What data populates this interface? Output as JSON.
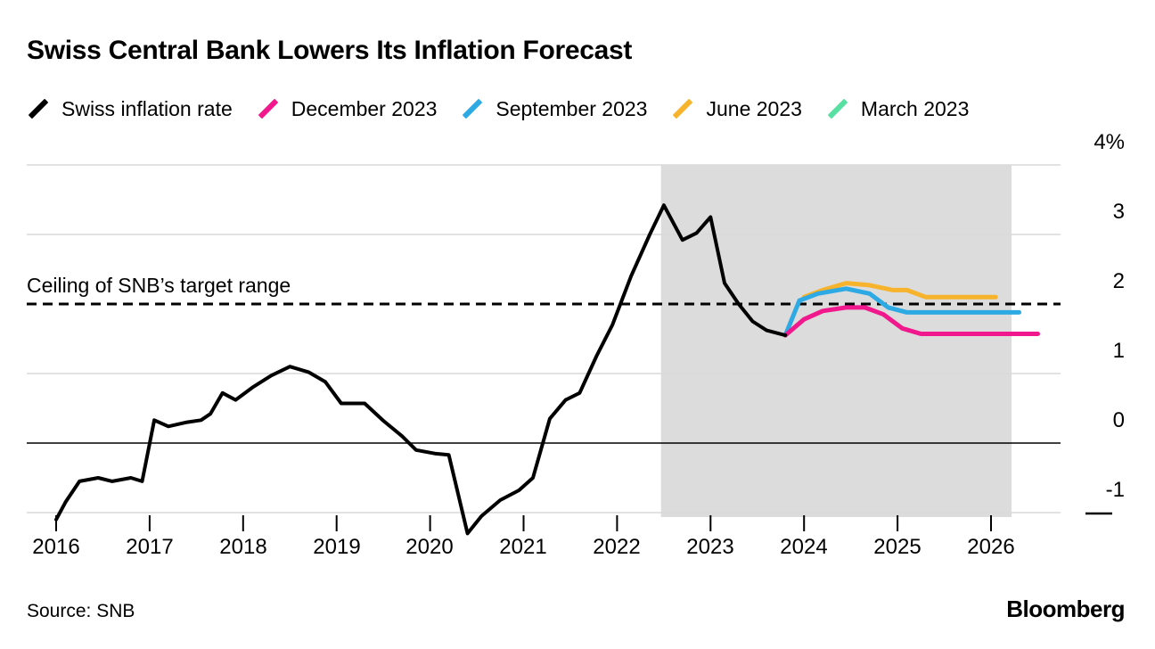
{
  "title": "Swiss Central Bank Lowers Its Inflation Forecast",
  "legend": {
    "items": [
      {
        "label": "Swiss inflation rate",
        "color": "#000000"
      },
      {
        "label": "December 2023",
        "color": "#f0188c"
      },
      {
        "label": "September 2023",
        "color": "#2da9e4"
      },
      {
        "label": "June 2023",
        "color": "#f6b32b"
      },
      {
        "label": "March 2023",
        "color": "#58dfa2"
      }
    ]
  },
  "annotation_label": "Ceiling of SNB’s target range",
  "source": "Source: SNB",
  "logo": "Bloomberg",
  "chart_data": {
    "type": "line",
    "title": "Swiss Central Bank Lowers Its Inflation Forecast",
    "xlabel": "",
    "ylabel": "",
    "ylim": [
      -1.5,
      4
    ],
    "xlim": [
      2015.7,
      2026.75
    ],
    "grid": true,
    "legend_position": "top",
    "y_ticks": [
      {
        "label": "4%",
        "value": 4
      },
      {
        "label": "3",
        "value": 3
      },
      {
        "label": "2",
        "value": 2
      },
      {
        "label": "1",
        "value": 1
      },
      {
        "label": "0",
        "value": 0
      },
      {
        "label": "-1",
        "value": -1
      }
    ],
    "x_ticks": [
      {
        "label": "2016",
        "value": 2016
      },
      {
        "label": "2017",
        "value": 2017
      },
      {
        "label": "2018",
        "value": 2018
      },
      {
        "label": "2019",
        "value": 2019
      },
      {
        "label": "2020",
        "value": 2020
      },
      {
        "label": "2021",
        "value": 2021
      },
      {
        "label": "2022",
        "value": 2022
      },
      {
        "label": "2023",
        "value": 2023
      },
      {
        "label": "2024",
        "value": 2024
      },
      {
        "label": "2025",
        "value": 2025
      },
      {
        "label": "2026",
        "value": 2026
      }
    ],
    "target_ceiling": {
      "label": "Ceiling of SNB’s target range",
      "value": 2.0,
      "style": "dashed",
      "color": "#000000"
    },
    "forecast_region": {
      "x_start": 2022.47,
      "x_end": 2026.22,
      "color": "#dcdcdc"
    },
    "series": [
      {
        "name": "Swiss inflation rate",
        "color": "#000000",
        "x": [
          2016.0,
          2016.1,
          2016.25,
          2016.45,
          2016.6,
          2016.8,
          2016.92,
          2017.05,
          2017.2,
          2017.4,
          2017.55,
          2017.65,
          2017.78,
          2017.92,
          2018.1,
          2018.3,
          2018.5,
          2018.7,
          2018.88,
          2019.05,
          2019.3,
          2019.5,
          2019.7,
          2019.85,
          2020.05,
          2020.2,
          2020.4,
          2020.55,
          2020.75,
          2020.95,
          2021.1,
          2021.28,
          2021.45,
          2021.6,
          2021.78,
          2021.95,
          2022.15,
          2022.35,
          2022.5,
          2022.7,
          2022.85,
          2023.0,
          2023.15,
          2023.3,
          2023.45,
          2023.6,
          2023.8
        ],
        "values": [
          -1.1,
          -0.85,
          -0.55,
          -0.5,
          -0.55,
          -0.5,
          -0.55,
          0.33,
          0.24,
          0.3,
          0.33,
          0.42,
          0.72,
          0.62,
          0.8,
          0.97,
          1.1,
          1.02,
          0.88,
          0.57,
          0.57,
          0.32,
          0.1,
          -0.1,
          -0.15,
          -0.17,
          -1.3,
          -1.05,
          -0.82,
          -0.68,
          -0.5,
          0.35,
          0.62,
          0.72,
          1.25,
          1.7,
          2.4,
          3.0,
          3.42,
          2.92,
          3.02,
          3.25,
          2.3,
          2.0,
          1.75,
          1.62,
          1.55
        ]
      },
      {
        "name": "December 2023",
        "color": "#f0188c",
        "x": [
          2023.8,
          2024.0,
          2024.2,
          2024.45,
          2024.65,
          2024.85,
          2025.05,
          2025.25,
          2025.6,
          2026.0,
          2026.5
        ],
        "values": [
          1.55,
          1.78,
          1.9,
          1.95,
          1.95,
          1.85,
          1.65,
          1.57,
          1.57,
          1.57,
          1.57
        ]
      },
      {
        "name": "September 2023",
        "color": "#2da9e4",
        "x": [
          2023.8,
          2023.95,
          2024.15,
          2024.45,
          2024.7,
          2024.9,
          2025.1,
          2025.5,
          2026.0,
          2026.3
        ],
        "values": [
          1.55,
          2.05,
          2.15,
          2.22,
          2.15,
          1.95,
          1.88,
          1.88,
          1.88,
          1.88
        ]
      },
      {
        "name": "June 2023",
        "color": "#f6b32b",
        "x": [
          2024.0,
          2024.2,
          2024.45,
          2024.7,
          2024.95,
          2025.1,
          2025.3,
          2025.6,
          2026.05
        ],
        "values": [
          2.1,
          2.2,
          2.3,
          2.27,
          2.2,
          2.2,
          2.1,
          2.1,
          2.1
        ]
      },
      {
        "name": "March 2023",
        "color": "#58dfa2",
        "x": [],
        "values": [],
        "note": "shown in legend; line hidden behind other forecast lines"
      }
    ],
    "source": "Source: SNB"
  }
}
